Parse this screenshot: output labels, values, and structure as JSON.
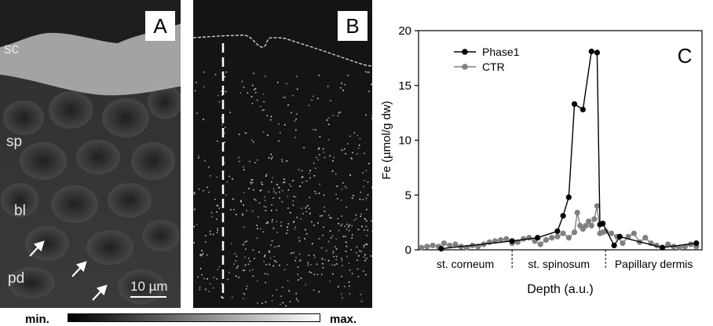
{
  "panel_a": {
    "letter": "A",
    "layer_labels": [
      "sc",
      "sp",
      "bl",
      "pd"
    ],
    "scalebar": "10 µm"
  },
  "panel_b": {
    "letter": "B"
  },
  "colorbar": {
    "min_label": "min.",
    "max_label": "max."
  },
  "panel_c": {
    "letter": "C"
  },
  "chart_data": {
    "type": "line",
    "xlabel": "Depth (a.u.)",
    "ylabel": "Fe (µmol/g dw)",
    "ylim": [
      0,
      20
    ],
    "yticks": [
      0,
      5,
      10,
      15,
      20
    ],
    "xlim": [
      0,
      100
    ],
    "regions": [
      "st. corneum",
      "st. spinosum",
      "Papillary dermis"
    ],
    "region_boundaries": [
      33,
      66
    ],
    "legend_position": "top-left",
    "colors": {
      "Phase1": "#000000",
      "CTR": "#808080"
    },
    "series": [
      {
        "name": "Phase1",
        "x": [
          8,
          33,
          42,
          49,
          51,
          53,
          55,
          58,
          61,
          63,
          64,
          65,
          69,
          71,
          86,
          98
        ],
        "y": [
          0.1,
          0.8,
          1.1,
          1.7,
          3.1,
          4.8,
          13.3,
          12.8,
          18.1,
          18.0,
          2.3,
          2.4,
          0.4,
          1.2,
          0.2,
          0.6
        ]
      },
      {
        "name": "CTR",
        "x": [
          1,
          3,
          5,
          7,
          9,
          11,
          13,
          15,
          17,
          19,
          21,
          23,
          25,
          27,
          29,
          31,
          33,
          35,
          37,
          39,
          41,
          43,
          45,
          47,
          49,
          51,
          53,
          55,
          56,
          57,
          58,
          59,
          60,
          61,
          62,
          63,
          64,
          65,
          66,
          68,
          70,
          72,
          74,
          76,
          78,
          80,
          82,
          84,
          86,
          88,
          90,
          92,
          94,
          96,
          98
        ],
        "y": [
          0.2,
          0.3,
          0.4,
          0.3,
          0.6,
          0.4,
          0.5,
          0.3,
          0.2,
          0.4,
          0.3,
          0.5,
          0.7,
          0.8,
          0.9,
          1.0,
          0.6,
          0.7,
          1.0,
          1.1,
          0.8,
          0.5,
          0.9,
          1.1,
          1.2,
          1.5,
          1.1,
          1.6,
          3.4,
          2.2,
          1.9,
          2.2,
          2.6,
          2.2,
          2.8,
          4.0,
          1.5,
          1.6,
          1.7,
          1.5,
          1.2,
          0.6,
          1.2,
          1.5,
          0.7,
          1.1,
          0.6,
          0.4,
          0.2,
          0.5,
          0.3,
          0.2,
          0.3,
          0.5,
          0.3
        ]
      }
    ]
  }
}
